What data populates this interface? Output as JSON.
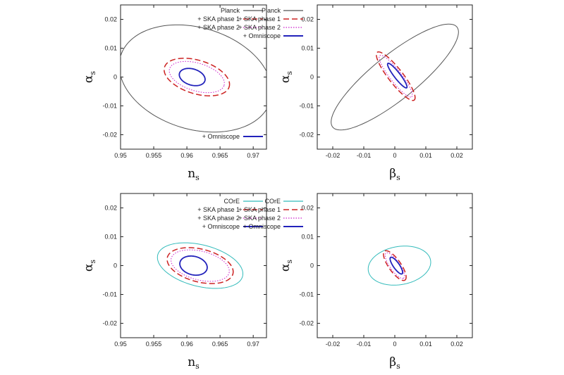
{
  "chart_data": [
    {
      "type": "contour",
      "xlabel": "n",
      "xlabel_sub": "s",
      "ylabel": "α",
      "ylabel_sub": "s",
      "xlim": [
        0.95,
        0.972
      ],
      "ylim": [
        -0.025,
        0.025
      ],
      "xticks": [
        "0.95",
        "0.955",
        "0.96",
        "0.965",
        "0.97"
      ],
      "yticks": [
        "0.02",
        "0.01",
        "0",
        "-0.01",
        "-0.02"
      ],
      "series": [
        {
          "name": "Planck",
          "color": "#555555",
          "dash": "solid",
          "ellipse": {
            "cx": 0.9613,
            "cy": -0.0005,
            "sx": 0.0118,
            "sy": 0.0176,
            "rot": -0.3
          }
        },
        {
          "name": "+ SKA phase 1",
          "color": "#cc2222",
          "dash": "dashed",
          "ellipse": {
            "cx": 0.9615,
            "cy": 0.0,
            "sx": 0.0051,
            "sy": 0.0058,
            "rot": -0.3
          }
        },
        {
          "name": "+ SKA phase 2",
          "color": "#cc22cc",
          "dash": "dotted",
          "ellipse": {
            "cx": 0.9615,
            "cy": 0.0,
            "sx": 0.0043,
            "sy": 0.0048,
            "rot": -0.3
          }
        },
        {
          "name": "+ Omniscope",
          "color": "#2222bb",
          "dash": "solid",
          "ellipse": {
            "cx": 0.9608,
            "cy": 0.0,
            "sx": 0.002,
            "sy": 0.0028,
            "rot": -0.3
          }
        }
      ]
    },
    {
      "type": "contour",
      "xlabel": "β",
      "xlabel_sub": "s",
      "ylabel": "α",
      "ylabel_sub": "s",
      "xlim": [
        -0.025,
        0.025
      ],
      "ylim": [
        -0.025,
        0.025
      ],
      "xticks": [
        "-0.02",
        "-0.01",
        "0",
        "0.01",
        "0.02"
      ],
      "yticks": [
        "0.02",
        "0.01",
        "0",
        "-0.01",
        "-0.02"
      ],
      "series": [
        {
          "name": "Planck",
          "color": "#555555",
          "dash": "solid",
          "ellipse": {
            "cx": 0.0,
            "cy": 0.0,
            "sx": 0.0265,
            "sy": 0.0075,
            "rot": 0.72
          }
        },
        {
          "name": "+ SKA phase 1",
          "color": "#cc2222",
          "dash": "dashed",
          "ellipse": {
            "cx": 0.0003,
            "cy": 0.0003,
            "sx": 0.0102,
            "sy": 0.0024,
            "rot": -0.95
          }
        },
        {
          "name": "+ SKA phase 2",
          "color": "#cc22cc",
          "dash": "dotted",
          "ellipse": {
            "cx": 0.0003,
            "cy": 0.0003,
            "sx": 0.0088,
            "sy": 0.0019,
            "rot": -0.95
          }
        },
        {
          "name": "+ Omniscope",
          "color": "#2222bb",
          "dash": "solid",
          "ellipse": {
            "cx": 0.0008,
            "cy": 0.0005,
            "sx": 0.0052,
            "sy": 0.001,
            "rot": -0.95
          }
        }
      ]
    },
    {
      "type": "contour",
      "xlabel": "n",
      "xlabel_sub": "s",
      "ylabel": "α",
      "ylabel_sub": "s",
      "xlim": [
        0.95,
        0.972
      ],
      "ylim": [
        -0.025,
        0.025
      ],
      "xticks": [
        "0.95",
        "0.955",
        "0.96",
        "0.965",
        "0.97"
      ],
      "yticks": [
        "0.02",
        "0.01",
        "0",
        "-0.01",
        "-0.02"
      ],
      "series": [
        {
          "name": "COrE",
          "color": "#33bbbb",
          "dash": "solid",
          "ellipse": {
            "cx": 0.962,
            "cy": 0.0,
            "sx": 0.0066,
            "sy": 0.0072,
            "rot": -0.25
          }
        },
        {
          "name": "+ SKA phase 1",
          "color": "#cc2222",
          "dash": "dashed",
          "ellipse": {
            "cx": 0.962,
            "cy": 0.0,
            "sx": 0.0051,
            "sy": 0.0057,
            "rot": -0.25
          }
        },
        {
          "name": "+ SKA phase 2",
          "color": "#cc22cc",
          "dash": "dotted",
          "ellipse": {
            "cx": 0.962,
            "cy": 0.0,
            "sx": 0.0045,
            "sy": 0.005,
            "rot": -0.25
          }
        },
        {
          "name": "+ Omniscope",
          "color": "#2222bb",
          "dash": "solid",
          "ellipse": {
            "cx": 0.961,
            "cy": 0.0,
            "sx": 0.0021,
            "sy": 0.0032,
            "rot": -0.25
          }
        }
      ]
    },
    {
      "type": "contour",
      "xlabel": "β",
      "xlabel_sub": "s",
      "ylabel": "α",
      "ylabel_sub": "s",
      "xlim": [
        -0.025,
        0.025
      ],
      "ylim": [
        -0.025,
        0.025
      ],
      "xticks": [
        "-0.02",
        "-0.01",
        "0",
        "0.01",
        "0.02"
      ],
      "yticks": [
        "0.02",
        "0.01",
        "0",
        "-0.01",
        "-0.02"
      ],
      "series": [
        {
          "name": "COrE",
          "color": "#33bbbb",
          "dash": "solid",
          "ellipse": {
            "cx": 0.0015,
            "cy": 0.0,
            "sx": 0.0102,
            "sy": 0.0066,
            "rot": 0.2
          }
        },
        {
          "name": "+ SKA phase 1",
          "color": "#cc2222",
          "dash": "dashed",
          "ellipse": {
            "cx": 0.0,
            "cy": 0.0,
            "sx": 0.006,
            "sy": 0.002,
            "rot": -1.0
          }
        },
        {
          "name": "+ SKA phase 2",
          "color": "#cc22cc",
          "dash": "dotted",
          "ellipse": {
            "cx": 0.0,
            "cy": 0.0,
            "sx": 0.0052,
            "sy": 0.0016,
            "rot": -1.0
          }
        },
        {
          "name": "+ Omniscope",
          "color": "#2222bb",
          "dash": "solid",
          "ellipse": {
            "cx": 0.0005,
            "cy": 0.0,
            "sx": 0.0034,
            "sy": 0.001,
            "rot": -1.0
          }
        }
      ]
    }
  ]
}
